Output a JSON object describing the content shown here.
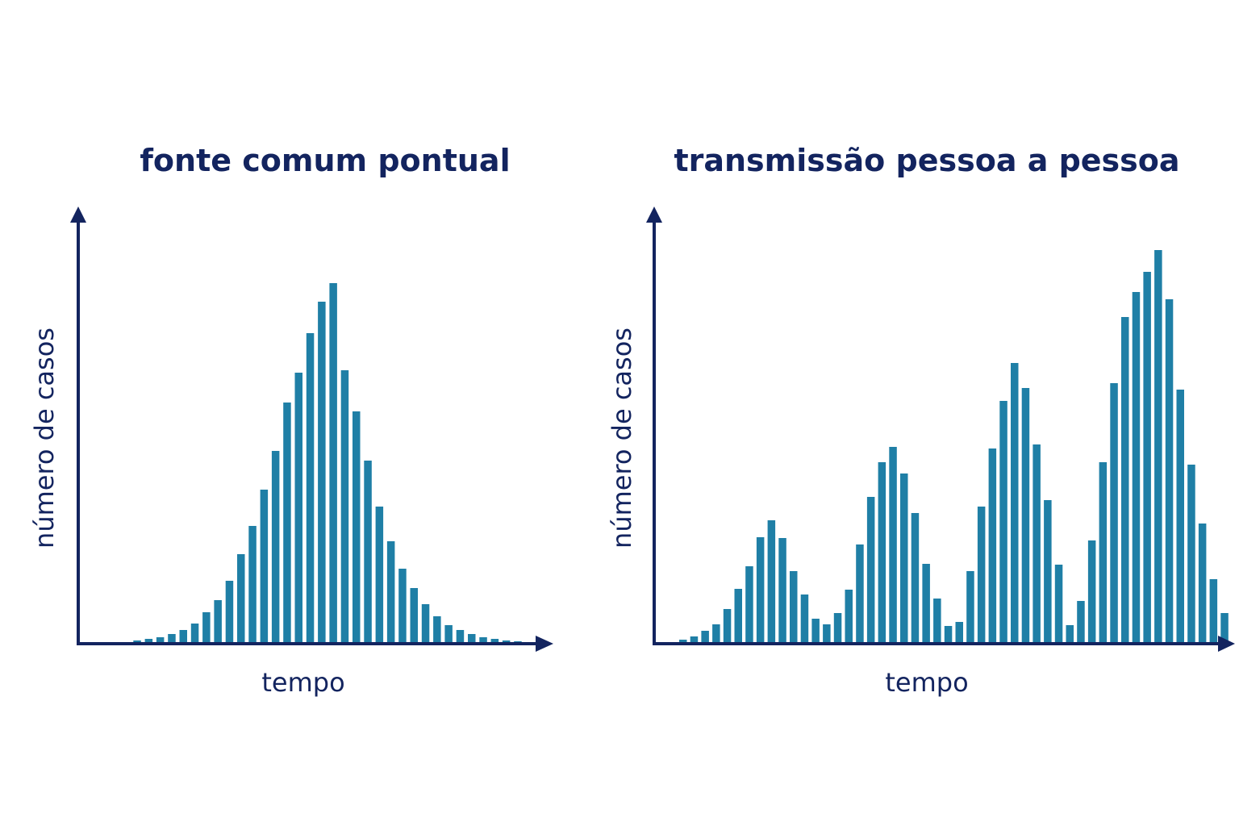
{
  "colors": {
    "bar": "#1f7fa6",
    "axis": "#13245f",
    "text": "#13245f",
    "background": "#ffffff"
  },
  "chart_data": [
    {
      "type": "bar",
      "title": "fonte comum pontual",
      "xlabel": "tempo",
      "ylabel": "número de casos",
      "grid": false,
      "legend": "none",
      "ylim": [
        0,
        500
      ],
      "values": [
        1,
        3,
        5,
        7,
        11,
        16,
        24,
        38,
        53,
        77,
        110,
        145,
        190,
        238,
        298,
        335,
        384,
        423,
        446,
        338,
        287,
        226,
        169,
        126,
        92,
        68,
        48,
        33,
        22,
        16,
        11,
        7,
        5,
        3,
        2
      ]
    },
    {
      "type": "bar",
      "title": "transmissão pessoa a pessoa",
      "xlabel": "tempo",
      "ylabel": "número de casos",
      "grid": false,
      "legend": "none",
      "ylim": [
        0,
        500
      ],
      "values": [
        4,
        8,
        15,
        23,
        42,
        67,
        95,
        131,
        152,
        130,
        89,
        60,
        30,
        23,
        37,
        66,
        122,
        181,
        224,
        243,
        210,
        161,
        98,
        55,
        21,
        26,
        89,
        169,
        241,
        300,
        347,
        316,
        246,
        177,
        97,
        22,
        52,
        127,
        224,
        322,
        404,
        435,
        460,
        487,
        426,
        314,
        221,
        148,
        79,
        37
      ]
    }
  ]
}
